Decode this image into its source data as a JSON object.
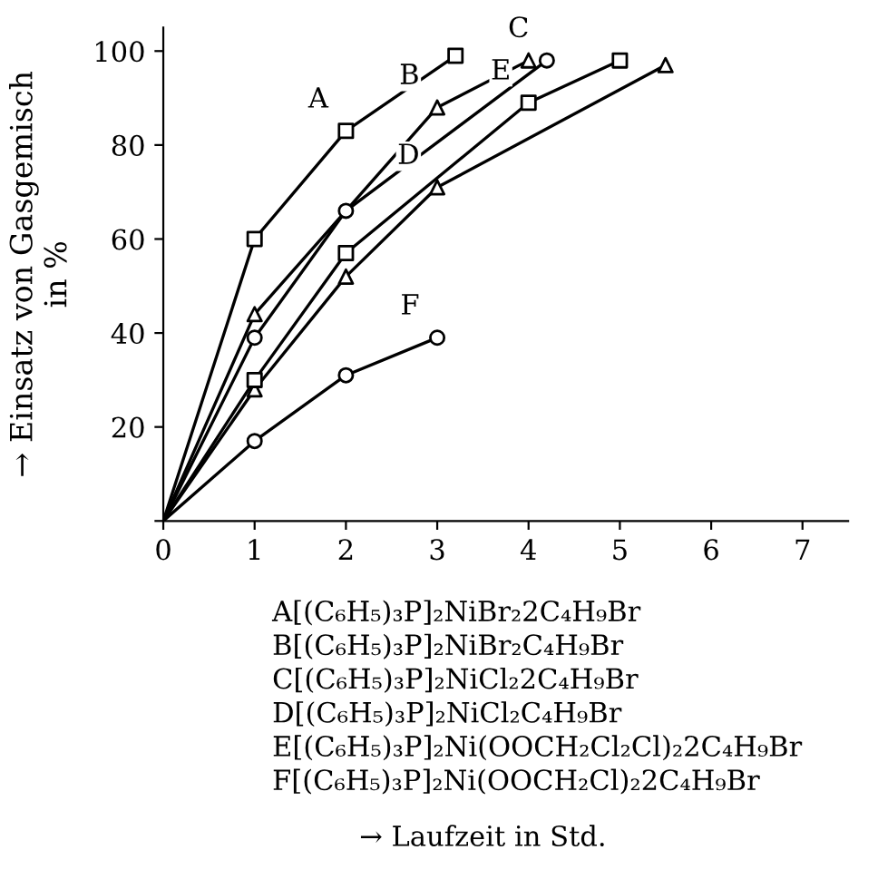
{
  "chart_data": {
    "type": "line",
    "ylabel": "→ Einsatz von Gasgemisch\nin %",
    "xlim": [
      0,
      7.5
    ],
    "ylim": [
      0,
      105
    ],
    "xticks": [
      0,
      1,
      2,
      3,
      4,
      5,
      6,
      7
    ],
    "yticks": [
      {
        "value": 0,
        "label": null
      },
      20,
      40,
      60,
      80,
      100
    ],
    "grid": false,
    "legend": false,
    "series": [
      {
        "color": "#000000",
        "marker": "square",
        "x": [
          0,
          1,
          2,
          3.2
        ],
        "values": [
          0,
          60,
          83,
          99
        ]
      },
      {
        "color": "#000000",
        "marker": "triangle",
        "x": [
          0,
          1,
          3,
          4
        ],
        "values": [
          0,
          44,
          88,
          98
        ]
      },
      {
        "color": "#000000",
        "marker": "circle",
        "x": [
          0,
          1,
          2,
          4.2
        ],
        "values": [
          0,
          39,
          66,
          98
        ]
      },
      {
        "color": "#000000",
        "marker": "triangle",
        "x": [
          0,
          1,
          2,
          3,
          5.5
        ],
        "values": [
          0,
          28,
          52,
          71,
          97
        ]
      },
      {
        "color": "#000000",
        "marker": "square",
        "x": [
          0,
          1,
          2,
          4,
          5
        ],
        "values": [
          0,
          30,
          57,
          89,
          98
        ]
      },
      {
        "color": "#000000",
        "marker": "circle",
        "x": [
          0,
          1,
          2,
          3
        ],
        "values": [
          0,
          17,
          31,
          39
        ]
      }
    ],
    "annotations": [
      {
        "text": "A",
        "x": 2,
        "y": 83
      },
      {
        "text": "B",
        "x": 3,
        "y": 88
      },
      {
        "text": "C",
        "x": 4.2,
        "y": 98
      },
      {
        "text": "D",
        "x": 3,
        "y": 71
      },
      {
        "text": "E",
        "x": 4,
        "y": 89
      },
      {
        "text": "F",
        "x": 3,
        "y": 39
      },
      "A[(C₆H₅)₃P]₂NiBr₂2C₄H₉Br",
      "B[(C₆H₅)₃P]₂NiBr₂C₄H₉Br",
      "C[(C₆H₅)₃P]₂NiCl₂2C₄H₉Br",
      "D[(C₆H₅)₃P]₂NiCl₂C₄H₉Br",
      "E[(C₆H₅)₃P]₂Ni(OOCH₂Cl₂Cl)₂2C₄H₉Br",
      "F[(C₆H₅)₃P]₂Ni(OOCH₂Cl)₂2C₄H₉Br",
      "→ Laufzeit in Std."
    ]
  }
}
